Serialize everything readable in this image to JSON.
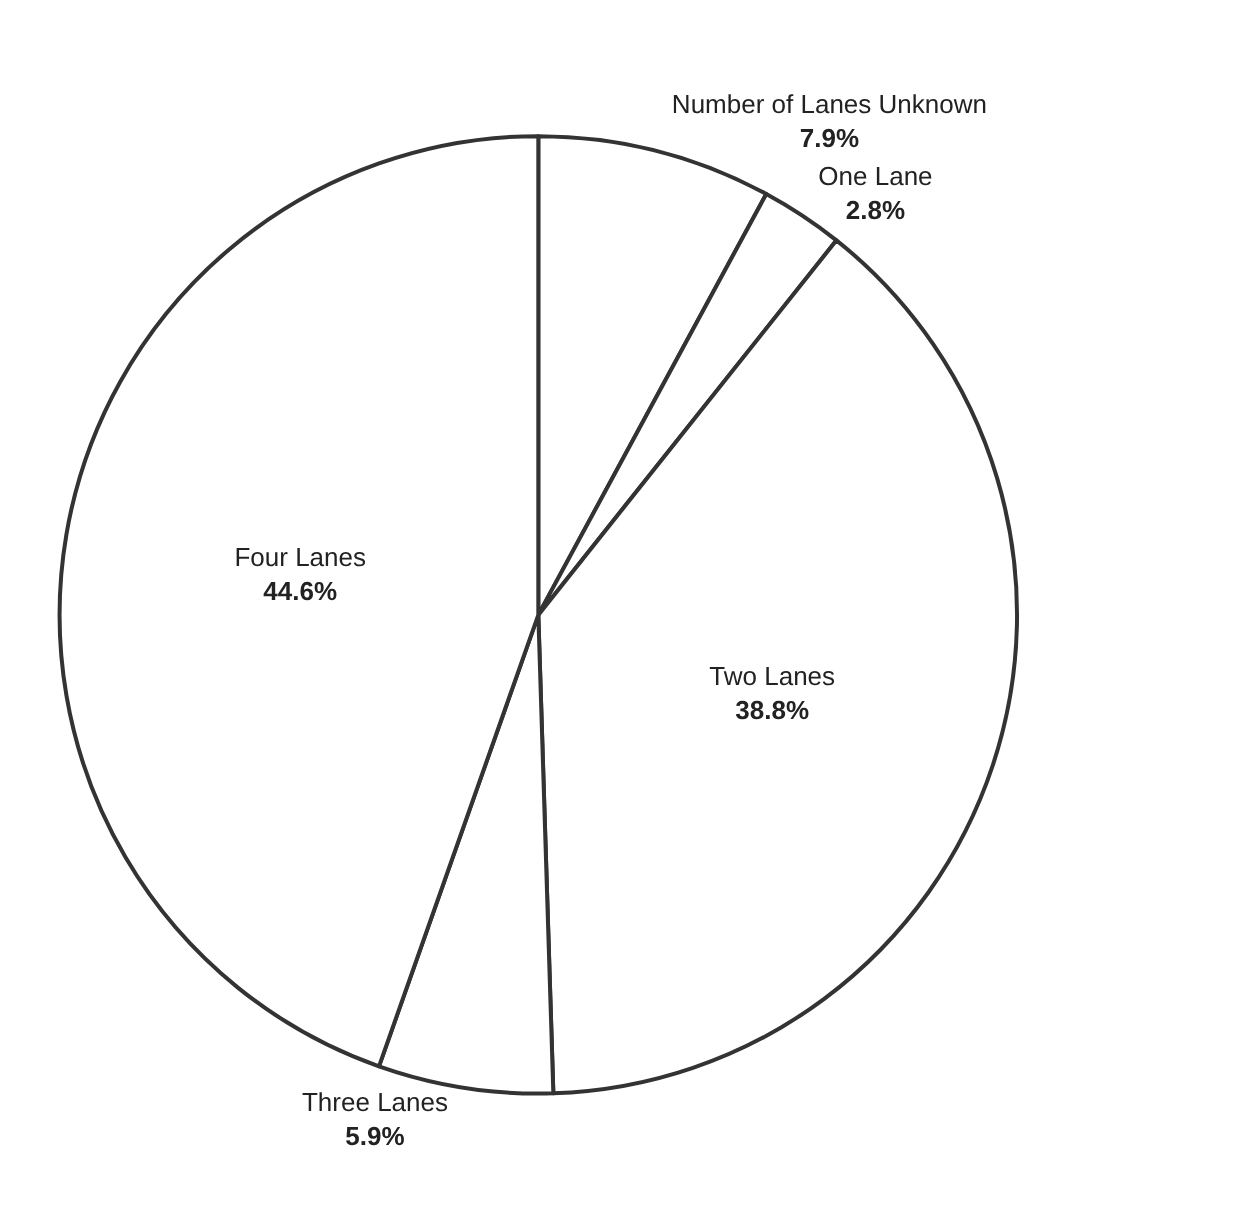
{
  "chart_data": {
    "type": "pie",
    "categories": [
      "Number of Lanes Unknown",
      "One Lane",
      "Two Lanes",
      "Three Lanes",
      "Four Lanes"
    ],
    "values": [
      7.9,
      2.8,
      38.8,
      5.9,
      44.6
    ],
    "value_labels": [
      "7.9%",
      "2.8%",
      "38.8%",
      "5.9%",
      "44.6%"
    ],
    "colors": [
      "#ffffff",
      "#ffffff",
      "#ffffff",
      "#ffffff",
      "#ffffff"
    ],
    "legend": false
  }
}
